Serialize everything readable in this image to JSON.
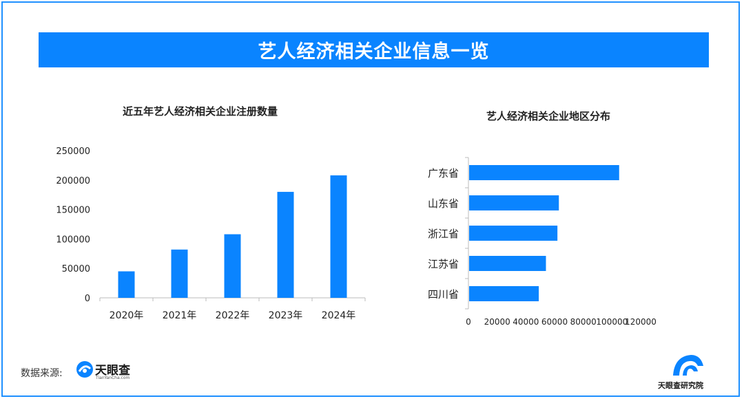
{
  "banner_title": "艺人经济相关企业信息一览",
  "source": {
    "label": "数据来源:",
    "logo_name": "天眼查",
    "logo_url": "TianYanCha.com"
  },
  "brand_footer": "天眼查研究院",
  "colors": {
    "bar": "#0a84ff",
    "banner": "#0a84ff",
    "border": "#1e90ff"
  },
  "chart_data": [
    {
      "type": "bar",
      "title": "近五年艺人经济相关企业注册数量",
      "categories": [
        "2020年",
        "2021年",
        "2022年",
        "2023年",
        "2024年"
      ],
      "values": [
        45000,
        82000,
        108000,
        180000,
        208000
      ],
      "yticks": [
        "0",
        "50000",
        "100000",
        "150000",
        "200000",
        "250000"
      ],
      "ylim": [
        0,
        250000
      ],
      "xlabel": "",
      "ylabel": "",
      "grid": false
    },
    {
      "type": "bar",
      "orientation": "horizontal",
      "title": "艺人经济相关企业地区分布",
      "categories": [
        "广东省",
        "山东省",
        "浙江省",
        "江苏省",
        "四川省"
      ],
      "values": [
        105000,
        63000,
        62000,
        54000,
        49000
      ],
      "xticks": [
        "0",
        "20000",
        "40000",
        "60000",
        "80000",
        "100000",
        "120000"
      ],
      "xlim": [
        0,
        120000
      ],
      "xlabel": "",
      "ylabel": "",
      "grid": false
    }
  ]
}
